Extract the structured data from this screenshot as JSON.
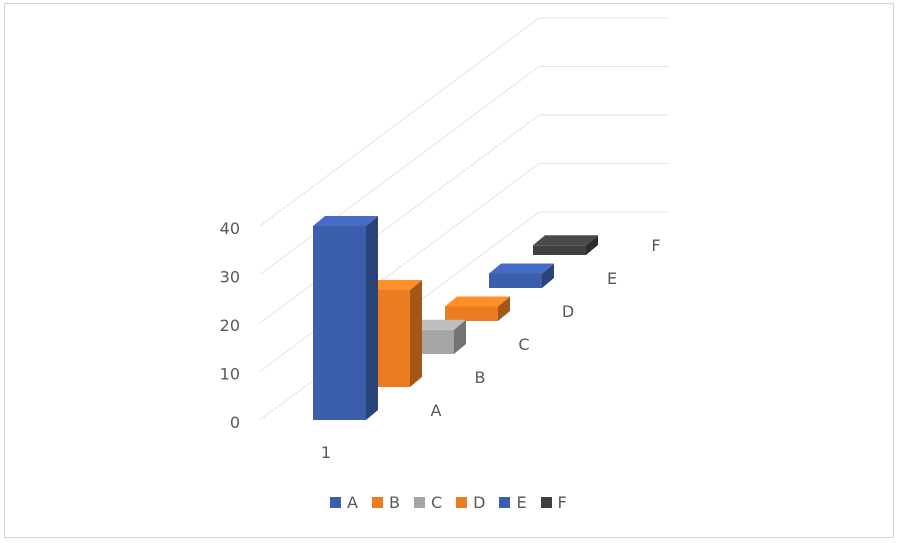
{
  "chart_data": {
    "type": "bar",
    "subtype": "3d-column",
    "categories": [
      "1"
    ],
    "series": [
      {
        "name": "A",
        "values": [
          40
        ],
        "color": "#3c5fad"
      },
      {
        "name": "B",
        "values": [
          20
        ],
        "color": "#ec7c22"
      },
      {
        "name": "C",
        "values": [
          5
        ],
        "color": "#a5a5a5"
      },
      {
        "name": "D",
        "values": [
          3
        ],
        "color": "#ec7c22"
      },
      {
        "name": "E",
        "values": [
          3
        ],
        "color": "#3c5fad"
      },
      {
        "name": "F",
        "values": [
          2
        ],
        "color": "#404040"
      }
    ],
    "y_ticks": [
      "0",
      "10",
      "20",
      "30",
      "40"
    ],
    "ylim": [
      0,
      40
    ],
    "gridlines": true,
    "legend_position": "bottom"
  }
}
